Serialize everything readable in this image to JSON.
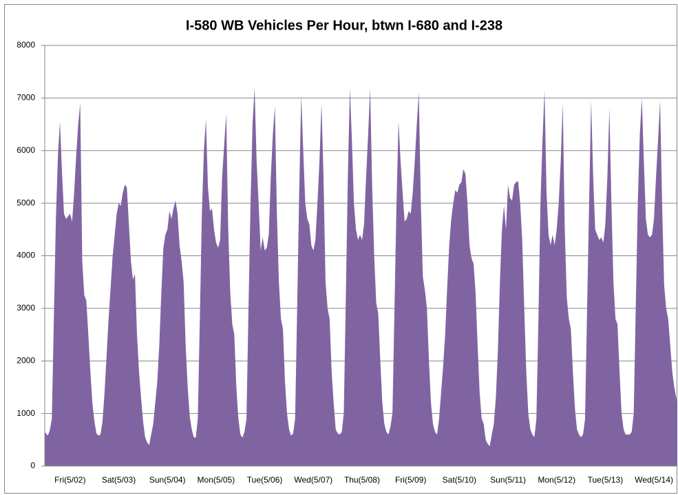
{
  "chart_data": {
    "type": "area",
    "title": "I-580 WB Vehicles Per Hour, btwn I-680 and I-238",
    "color": "#8064a2",
    "grid": true,
    "ylim": [
      0,
      8000
    ],
    "yticks": [
      0,
      1000,
      2000,
      3000,
      4000,
      5000,
      6000,
      7000,
      8000
    ],
    "categories": [
      null,
      null,
      null,
      null,
      null,
      null,
      null,
      null,
      null,
      null,
      null,
      null,
      "Fri(5/02)",
      null,
      null,
      null,
      null,
      null,
      null,
      null,
      null,
      null,
      null,
      null,
      null,
      null,
      null,
      null,
      null,
      null,
      null,
      null,
      null,
      null,
      null,
      null,
      "Sat(5/03)",
      null,
      null,
      null,
      null,
      null,
      null,
      null,
      null,
      null,
      null,
      null,
      null,
      null,
      null,
      null,
      null,
      null,
      null,
      null,
      null,
      null,
      null,
      null,
      "Sun(5/04)",
      null,
      null,
      null,
      null,
      null,
      null,
      null,
      null,
      null,
      null,
      null,
      null,
      null,
      null,
      null,
      null,
      null,
      null,
      null,
      null,
      null,
      null,
      null,
      "Mon(5/05)",
      null,
      null,
      null,
      null,
      null,
      null,
      null,
      null,
      null,
      null,
      null,
      null,
      null,
      null,
      null,
      null,
      null,
      null,
      null,
      null,
      null,
      null,
      null,
      "Tue(5/06)",
      null,
      null,
      null,
      null,
      null,
      null,
      null,
      null,
      null,
      null,
      null,
      null,
      null,
      null,
      null,
      null,
      null,
      null,
      null,
      null,
      null,
      null,
      null,
      "Wed(5/07)",
      null,
      null,
      null,
      null,
      null,
      null,
      null,
      null,
      null,
      null,
      null,
      null,
      null,
      null,
      null,
      null,
      null,
      null,
      null,
      null,
      null,
      null,
      null,
      "Thu(5/08)",
      null,
      null,
      null,
      null,
      null,
      null,
      null,
      null,
      null,
      null,
      null,
      null,
      null,
      null,
      null,
      null,
      null,
      null,
      null,
      null,
      null,
      null,
      null,
      "Fri(5/09)",
      null,
      null,
      null,
      null,
      null,
      null,
      null,
      null,
      null,
      null,
      null,
      null,
      null,
      null,
      null,
      null,
      null,
      null,
      null,
      null,
      null,
      null,
      null,
      "Sat(5/10)",
      null,
      null,
      null,
      null,
      null,
      null,
      null,
      null,
      null,
      null,
      null,
      null,
      null,
      null,
      null,
      null,
      null,
      null,
      null,
      null,
      null,
      null,
      null,
      "Sun(5/11)",
      null,
      null,
      null,
      null,
      null,
      null,
      null,
      null,
      null,
      null,
      null,
      null,
      null,
      null,
      null,
      null,
      null,
      null,
      null,
      null,
      null,
      null,
      null,
      "Mon(5/12)",
      null,
      null,
      null,
      null,
      null,
      null,
      null,
      null,
      null,
      null,
      null,
      null,
      null,
      null,
      null,
      null,
      null,
      null,
      null,
      null,
      null,
      null,
      null,
      "Tue(5/13)",
      null,
      null,
      null,
      null,
      null,
      null,
      null,
      null,
      null,
      null,
      null,
      null,
      null,
      null,
      null,
      null,
      null,
      null,
      null,
      null,
      null,
      null,
      null,
      "Wed(5/14)",
      null,
      null,
      null,
      null,
      null,
      null,
      null,
      null,
      null,
      null,
      null
    ],
    "values": [
      650,
      580,
      680,
      900,
      2800,
      4700,
      5900,
      6550,
      5600,
      4800,
      4700,
      4750,
      4800,
      4650,
      5200,
      5900,
      6500,
      6900,
      3900,
      3250,
      3150,
      2500,
      1800,
      1200,
      850,
      620,
      580,
      600,
      850,
      1400,
      2100,
      2800,
      3400,
      4000,
      4400,
      4800,
      5000,
      4950,
      5200,
      5350,
      5300,
      4600,
      3900,
      3550,
      3650,
      2500,
      1800,
      1300,
      850,
      550,
      450,
      400,
      600,
      800,
      1200,
      1600,
      2300,
      3300,
      4150,
      4400,
      4500,
      4850,
      4700,
      4900,
      5050,
      4800,
      4200,
      3900,
      3500,
      2300,
      1500,
      950,
      700,
      550,
      540,
      900,
      2800,
      4800,
      6000,
      6600,
      5300,
      4850,
      4900,
      4500,
      4250,
      4150,
      4300,
      5500,
      6100,
      6700,
      4500,
      3300,
      2700,
      2500,
      1500,
      900,
      600,
      540,
      650,
      900,
      3000,
      5000,
      6500,
      7200,
      5800,
      5000,
      4100,
      4350,
      4100,
      4150,
      4400,
      5500,
      6300,
      6850,
      4800,
      3500,
      2800,
      2600,
      1600,
      1000,
      700,
      580,
      620,
      900,
      3000,
      5200,
      7050,
      6000,
      5000,
      4700,
      4600,
      4200,
      4100,
      4300,
      5000,
      5800,
      6900,
      5500,
      3500,
      3000,
      2800,
      1800,
      1200,
      700,
      620,
      600,
      650,
      1000,
      3200,
      5500,
      7180,
      6200,
      5000,
      4500,
      4300,
      4400,
      4300,
      4600,
      5500,
      6300,
      7180,
      5300,
      4000,
      3100,
      2900,
      2000,
      1200,
      800,
      650,
      600,
      750,
      1000,
      3000,
      5000,
      6550,
      5800,
      5200,
      4650,
      4700,
      4850,
      4800,
      5200,
      5800,
      6500,
      7100,
      5000,
      3600,
      3350,
      3000,
      2000,
      1200,
      800,
      650,
      600,
      900,
      1400,
      1900,
      2500,
      3400,
      4200,
      4700,
      5000,
      5250,
      5200,
      5350,
      5400,
      5650,
      5550,
      5000,
      4200,
      3950,
      3850,
      3300,
      2300,
      1400,
      900,
      800,
      500,
      420,
      380,
      600,
      800,
      1300,
      2200,
      3500,
      4500,
      4950,
      4500,
      5350,
      5100,
      5050,
      5350,
      5400,
      5420,
      5000,
      4300,
      3000,
      1800,
      1000,
      700,
      600,
      550,
      900,
      2800,
      5000,
      6200,
      7150,
      5200,
      4400,
      4200,
      4400,
      4200,
      4500,
      5000,
      5800,
      6900,
      4500,
      3200,
      2800,
      2600,
      1800,
      1100,
      700,
      600,
      550,
      600,
      900,
      3000,
      5000,
      6950,
      5500,
      4500,
      4400,
      4300,
      4350,
      4250,
      4600,
      5500,
      6800,
      5000,
      3500,
      2800,
      2700,
      1800,
      1000,
      700,
      600,
      600,
      600,
      650,
      1000,
      3000,
      5000,
      6300,
      7000,
      5800,
      4700,
      4400,
      4350,
      4400,
      4700,
      5500,
      6200,
      6950,
      5000,
      3450,
      3000,
      2800,
      2300,
      1800,
      1500,
      1200
    ]
  }
}
